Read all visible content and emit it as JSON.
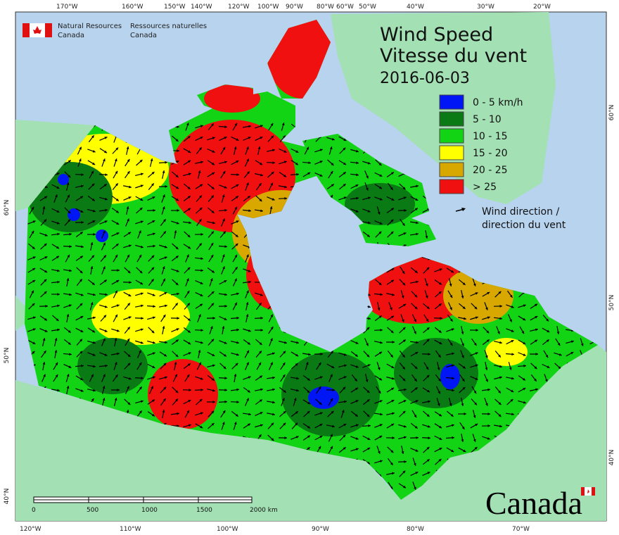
{
  "header": {
    "title": "Wind Speed",
    "subtitle": "Vitesse du vent",
    "date": "2016-06-03"
  },
  "agency": {
    "english": [
      "Natural Resources",
      "Canada"
    ],
    "french": [
      "Ressources naturelles",
      "Canada"
    ]
  },
  "legend": {
    "items": [
      {
        "label": "0 - 5 km/h",
        "color": "#0016f5"
      },
      {
        "label": "5 - 10",
        "color": "#0a7a14"
      },
      {
        "label": "10 - 15",
        "color": "#12d414"
      },
      {
        "label": "15 - 20",
        "color": "#ffff00"
      },
      {
        "label": "20 - 25",
        "color": "#d8a800"
      },
      {
        "label": "> 25",
        "color": "#f01010"
      }
    ],
    "direction": [
      "Wind direction /",
      "direction du vent"
    ]
  },
  "graticule": {
    "top": [
      "170°W",
      "160°W",
      "150°W",
      "140°W",
      "120°W",
      "100°W",
      "90°W",
      "80°W",
      "60°W",
      "50°W",
      "40°W",
      "30°W",
      "20°W"
    ],
    "bottom": [
      "120°W",
      "110°W",
      "100°W",
      "90°W",
      "80°W",
      "70°W"
    ],
    "left": [
      "60°N",
      "50°N",
      "40°N"
    ],
    "right": [
      "60°N",
      "50°N",
      "40°N"
    ]
  },
  "scale_bar": [
    "0",
    "500",
    "1000",
    "1500",
    "2000 km"
  ],
  "wordmark": "Canada"
}
